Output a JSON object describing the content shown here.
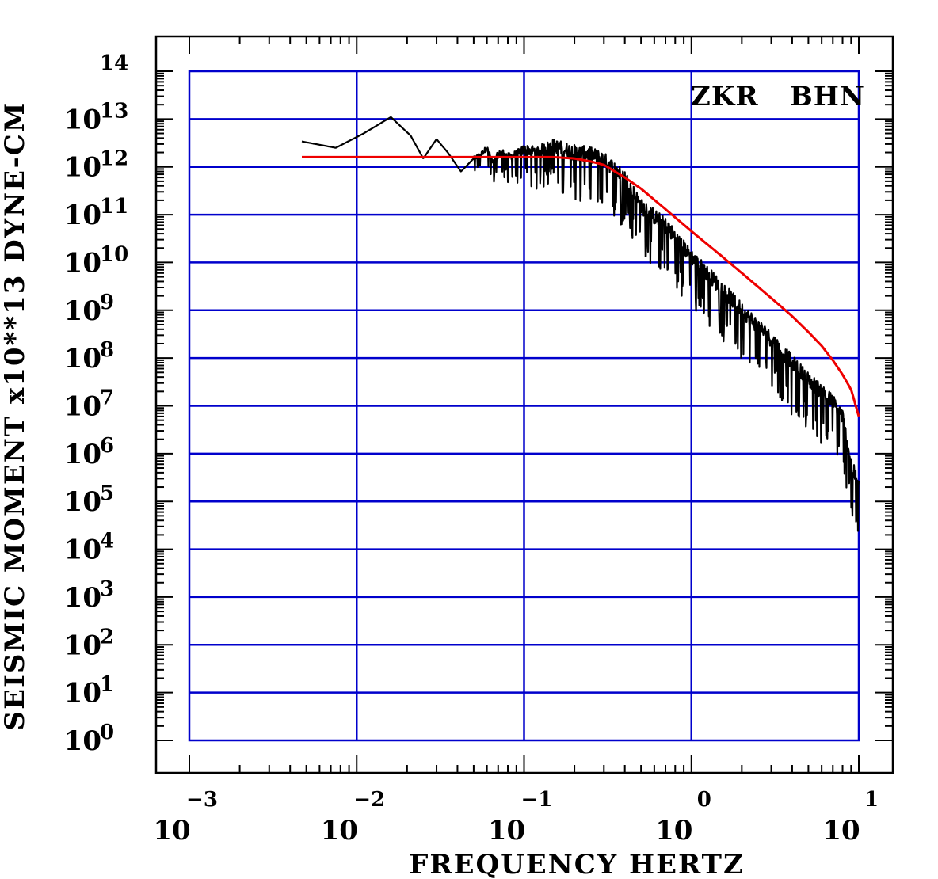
{
  "chart_data": {
    "type": "line",
    "xlabel": "FREQUENCY  HERTZ",
    "ylabel": "SEISMIC MOMENT x10**13 DYNE-CM",
    "x_scale": "log",
    "y_scale": "log",
    "xlim": [
      0.001,
      10
    ],
    "ylim": [
      1,
      100000000000000.0
    ],
    "x_ticks": [
      {
        "base": "10",
        "exp": "−3"
      },
      {
        "base": "10",
        "exp": "−2"
      },
      {
        "base": "10",
        "exp": "−1"
      },
      {
        "base": "10",
        "exp": "0"
      },
      {
        "base": "10",
        "exp": "1"
      }
    ],
    "y_ticks": [
      {
        "base": "10",
        "exp": "0"
      },
      {
        "base": "10",
        "exp": "1"
      },
      {
        "base": "10",
        "exp": "2"
      },
      {
        "base": "10",
        "exp": "3"
      },
      {
        "base": "10",
        "exp": "4"
      },
      {
        "base": "10",
        "exp": "5"
      },
      {
        "base": "10",
        "exp": "6"
      },
      {
        "base": "10",
        "exp": "7"
      },
      {
        "base": "10",
        "exp": "8"
      },
      {
        "base": "10",
        "exp": "9"
      },
      {
        "base": "10",
        "exp": "10"
      },
      {
        "base": "10",
        "exp": "11"
      },
      {
        "base": "10",
        "exp": "12"
      },
      {
        "base": "10",
        "exp": "13"
      },
      {
        "base": "",
        "exp": "14"
      }
    ],
    "grid": true,
    "annotations": [
      {
        "text": "ZKR",
        "position": "top-right"
      },
      {
        "text": "BHN",
        "position": "top-right"
      }
    ],
    "colors": {
      "grid": "#0000cc",
      "spectrum": "#000000",
      "model": "#ee0000",
      "frame": "#000000"
    },
    "series": [
      {
        "style": "jagged",
        "color": "#000000",
        "x": [
          0.0047,
          0.0075,
          0.011,
          0.016,
          0.021,
          0.025,
          0.03,
          0.035,
          0.042,
          0.05,
          0.055,
          0.06,
          0.065,
          0.07,
          0.075,
          0.08,
          0.09,
          0.1,
          0.12,
          0.15,
          0.2,
          0.25,
          0.3,
          0.4,
          0.5,
          0.7,
          1.0,
          1.5,
          2.0,
          3.0,
          4.0,
          5.0,
          6.0,
          7.0,
          8.0,
          9.0,
          10.0
        ],
        "y": [
          3400000000000.0,
          2500000000000.0,
          5000000000000.0,
          11000000000000.0,
          4500000000000.0,
          1500000000000.0,
          3800000000000.0,
          2000000000000.0,
          800000000000.0,
          1500000000000.0,
          1800000000000.0,
          2500000000000.0,
          1200000000000.0,
          1800000000000.0,
          2000000000000.0,
          1600000000000.0,
          1800000000000.0,
          2300000000000.0,
          2100000000000.0,
          2800000000000.0,
          2000000000000.0,
          1800000000000.0,
          1400000000000.0,
          600000000000.0,
          150000000000.0,
          60000000000.0,
          13000000000.0,
          3000000000.0,
          1000000000.0,
          250000000.0,
          80000000.0,
          35000000.0,
          20000000.0,
          12000000.0,
          6000000.0,
          600000.0,
          200000.0
        ],
        "noise_from_x": 0.05
      },
      {
        "style": "smooth",
        "color": "#ee0000",
        "x": [
          0.0047,
          0.05,
          0.15,
          0.2,
          0.25,
          0.3,
          0.4,
          0.5,
          0.7,
          1.0,
          1.5,
          2.0,
          3.0,
          4.0,
          5.0,
          6.0,
          7.0,
          8.0,
          9.0,
          10.0
        ],
        "y": [
          1600000000000.0,
          1600000000000.0,
          1600000000000.0,
          1500000000000.0,
          1300000000000.0,
          1100000000000.0,
          600000000000.0,
          350000000000.0,
          130000000000.0,
          45000000000.0,
          14000000000.0,
          6000000000.0,
          1800000000.0,
          750000000.0,
          350000000.0,
          180000000.0,
          90000000.0,
          45000000.0,
          22000000.0,
          6000000.0
        ]
      }
    ]
  }
}
